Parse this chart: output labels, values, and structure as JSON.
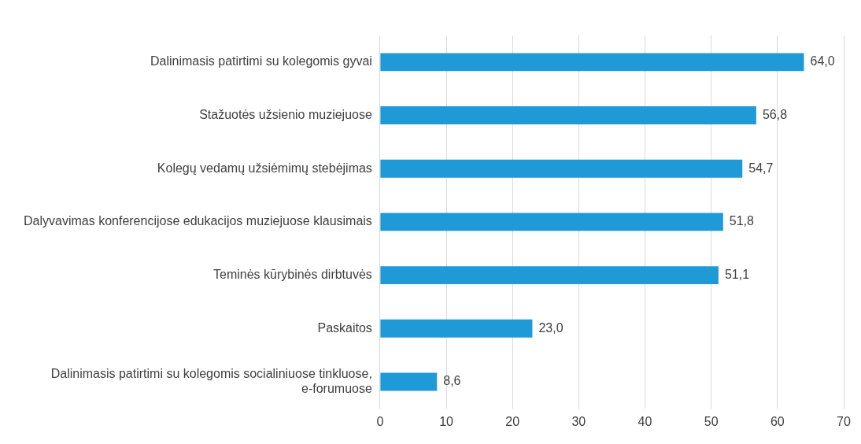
{
  "chart_data": {
    "type": "bar",
    "orientation": "horizontal",
    "categories": [
      "Dalinimasis patirtimi su kolegomis gyvai",
      "Stažuotės užsienio muziejuose",
      "Kolegų vedamų užsiėmimų stebėjimas",
      "Dalyvavimas konferencijose edukacijos muziejuose klausimais",
      "Teminės kūrybinės dirbtuvės",
      "Paskaitos",
      "Dalinimasis patirtimi su kolegomis socialiniuose tinkluose, e-forumuose"
    ],
    "values": [
      64.0,
      56.8,
      54.7,
      51.8,
      51.1,
      23.0,
      8.6
    ],
    "value_labels": [
      "64,0",
      "56,8",
      "54,7",
      "51,8",
      "51,1",
      "23,0",
      "8,6"
    ],
    "color": "#1f9ad6",
    "xlim": [
      0,
      70
    ],
    "xticks": [
      0,
      10,
      20,
      30,
      40,
      50,
      60,
      70
    ],
    "grid": "x",
    "legend": false
  }
}
